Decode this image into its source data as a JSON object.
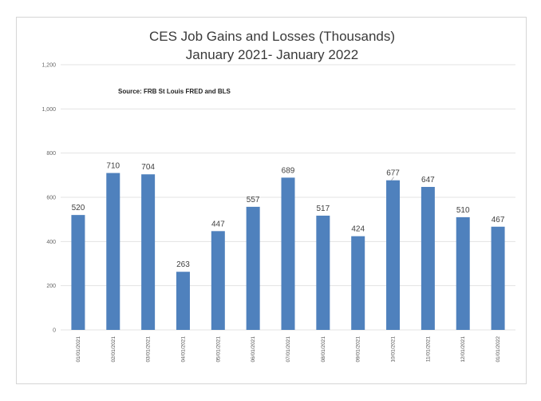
{
  "chart_data": {
    "type": "bar",
    "title": "CES Job Gains and Losses (Thousands)",
    "subtitle": "January 2021- January 2022",
    "source_note": "Source: FRB St Louis FRED and BLS",
    "xlabel": "",
    "ylabel": "",
    "ylim": [
      0,
      1200
    ],
    "yticks": [
      0,
      200,
      400,
      600,
      800,
      1000,
      1200
    ],
    "ytick_labels": [
      "0",
      "200",
      "400",
      "600",
      "800",
      "1,000",
      "1,200"
    ],
    "grid": true,
    "legend": "none",
    "bar_color": "#4f81bd",
    "highlight_label_color": "#ff0000",
    "highlight_index": 9,
    "categories": [
      "01/01/2021",
      "02/01/2021",
      "03/01/2021",
      "04/01/2021",
      "05/01/2021",
      "06/01/2021",
      "07/01/2021",
      "08/01/2021",
      "09/01/2021",
      "10/01/2021",
      "11/01/2021",
      "12/01/2021",
      "01/01/2022"
    ],
    "values": [
      520,
      710,
      704,
      263,
      447,
      557,
      689,
      517,
      424,
      677,
      647,
      510,
      467
    ]
  }
}
